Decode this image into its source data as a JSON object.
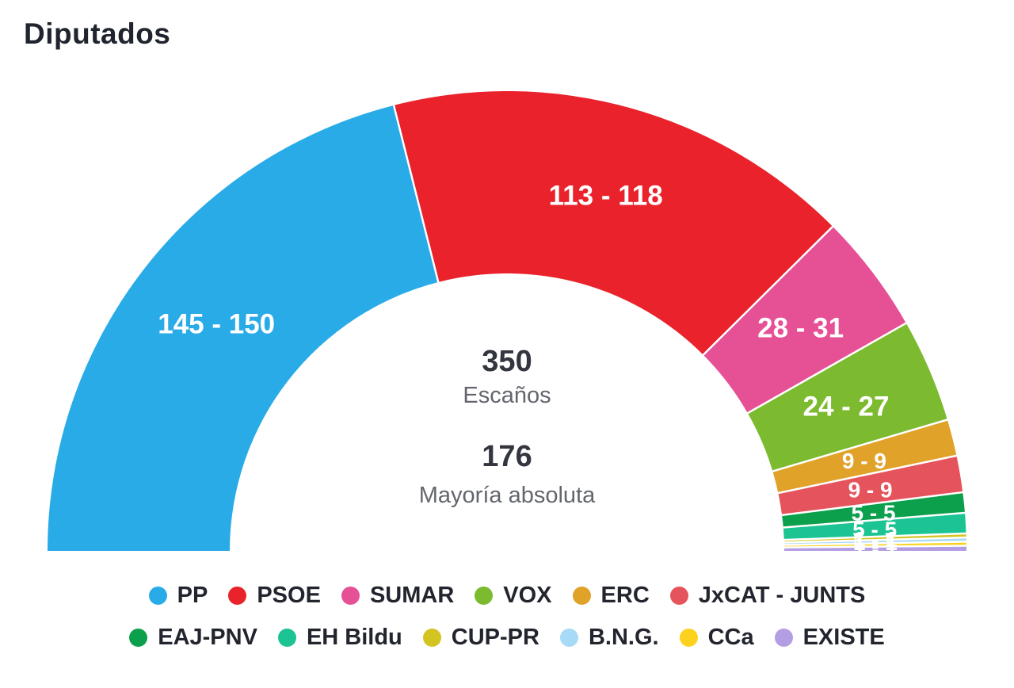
{
  "title": "Diputados",
  "center": {
    "seats_total": "350",
    "seats_label": "Escaños",
    "majority_value": "176",
    "majority_label": "Mayoría absoluta"
  },
  "chart_data": {
    "type": "half-donut",
    "title": "Diputados",
    "total_seats": 350,
    "majority_seats": 176,
    "legend_position": "bottom",
    "series": [
      {
        "id": "pp",
        "name": "PP",
        "seats_min": 145,
        "seats_max": 150,
        "label": "145 - 150",
        "color": "#29ABE8"
      },
      {
        "id": "psoe",
        "name": "PSOE",
        "seats_min": 113,
        "seats_max": 118,
        "label": "113 - 118",
        "color": "#E9222B"
      },
      {
        "id": "sumar",
        "name": "SUMAR",
        "seats_min": 28,
        "seats_max": 31,
        "label": "28 - 31",
        "color": "#E65095"
      },
      {
        "id": "vox",
        "name": "VOX",
        "seats_min": 24,
        "seats_max": 27,
        "label": "24 - 27",
        "color": "#7CBA2F"
      },
      {
        "id": "erc",
        "name": "ERC",
        "seats_min": 9,
        "seats_max": 9,
        "label": "9 - 9",
        "color": "#E0A228"
      },
      {
        "id": "jxcat-junts",
        "name": "JxCAT - JUNTS",
        "seats_min": 9,
        "seats_max": 9,
        "label": "9 - 9",
        "color": "#E5545C"
      },
      {
        "id": "eaj-pnv",
        "name": "EAJ-PNV",
        "seats_min": 5,
        "seats_max": 5,
        "label": "5 - 5",
        "color": "#0DA04C"
      },
      {
        "id": "eh-bildu",
        "name": "EH Bildu",
        "seats_min": 5,
        "seats_max": 5,
        "label": "5 - 5",
        "color": "#1BC492"
      },
      {
        "id": "cup-pr",
        "name": "CUP-PR",
        "seats_min": 1,
        "seats_max": 1,
        "label": "1 - 1",
        "color": "#D3C422"
      },
      {
        "id": "bng",
        "name": "B.N.G.",
        "seats_min": 1,
        "seats_max": 1,
        "label": "1 - 1",
        "color": "#A7DAF6"
      },
      {
        "id": "cca",
        "name": "CCa",
        "seats_min": 1,
        "seats_max": 1,
        "label": "1 - 1",
        "color": "#FCD21E"
      },
      {
        "id": "existe",
        "name": "EXISTE",
        "seats_min": 1,
        "seats_max": 1,
        "label": "1 - 1",
        "color": "#B39EE3"
      }
    ],
    "legend_rows": [
      [
        "pp",
        "psoe",
        "sumar",
        "vox",
        "erc",
        "jxcat-junts"
      ],
      [
        "eaj-pnv",
        "eh-bildu",
        "cup-pr",
        "bng",
        "cca",
        "existe"
      ]
    ]
  }
}
